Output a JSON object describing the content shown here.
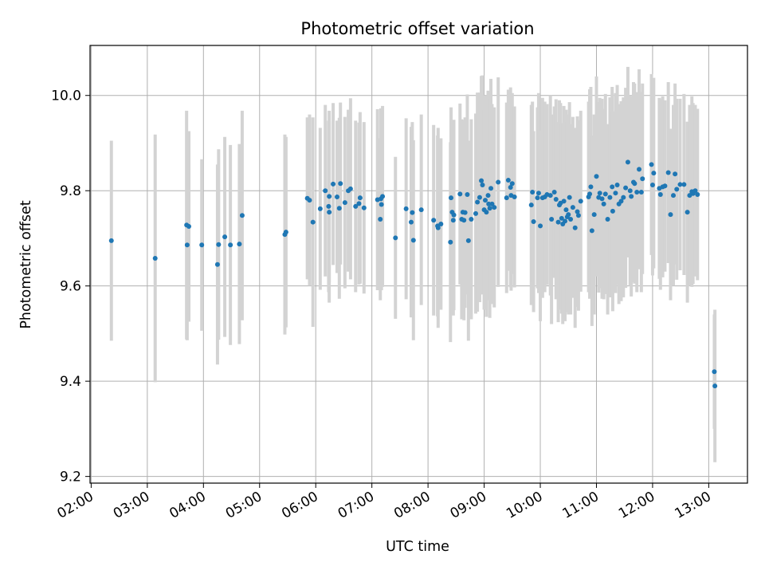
{
  "chart_data": {
    "type": "scatter",
    "title": "Photometric offset variation",
    "xlabel": "UTC time",
    "ylabel": "Photometric offset",
    "x_unit": "hours UTC",
    "xlim": [
      1.98,
      13.69
    ],
    "ylim": [
      9.186,
      10.105
    ],
    "grid": true,
    "x_tick_values": [
      2,
      3,
      4,
      5,
      6,
      7,
      8,
      9,
      10,
      11,
      12,
      13
    ],
    "x_tick_labels": [
      "02:00",
      "03:00",
      "04:00",
      "05:00",
      "06:00",
      "07:00",
      "08:00",
      "09:00",
      "10:00",
      "11:00",
      "12:00",
      "13:00"
    ],
    "y_tick_values": [
      9.2,
      9.4,
      9.6,
      9.8,
      10.0
    ],
    "y_tick_labels": [
      "9.2",
      "9.4",
      "9.6",
      "9.8",
      "10.0"
    ],
    "colors": {
      "point": "#1f77b4",
      "errorbar": "#d3d3d3",
      "grid": "#b0b0b0"
    },
    "series": [
      {
        "name": "offset",
        "points": [
          [
            2.36,
            9.695,
            0.21
          ],
          [
            3.14,
            9.658,
            0.26
          ],
          [
            3.7,
            9.728,
            0.24
          ],
          [
            3.71,
            9.686,
            0.2
          ],
          [
            3.74,
            9.725,
            0.2
          ],
          [
            3.97,
            9.686,
            0.18
          ],
          [
            4.25,
            9.645,
            0.21
          ],
          [
            4.27,
            9.687,
            0.2
          ],
          [
            4.38,
            9.703,
            0.21
          ],
          [
            4.48,
            9.686,
            0.21
          ],
          [
            4.64,
            9.688,
            0.21
          ],
          [
            4.69,
            9.748,
            0.22
          ],
          [
            5.45,
            9.708,
            0.21
          ],
          [
            5.47,
            9.713,
            0.2
          ],
          [
            5.85,
            9.784,
            0.17
          ],
          [
            5.89,
            9.78,
            0.18
          ],
          [
            5.95,
            9.734,
            0.22
          ],
          [
            6.08,
            9.762,
            0.17
          ],
          [
            6.17,
            9.8,
            0.18
          ],
          [
            6.23,
            9.767,
            0.18
          ],
          [
            6.24,
            9.788,
            0.18
          ],
          [
            6.24,
            9.755,
            0.19
          ],
          [
            6.31,
            9.814,
            0.17
          ],
          [
            6.38,
            9.787,
            0.16
          ],
          [
            6.42,
            9.763,
            0.19
          ],
          [
            6.44,
            9.815,
            0.17
          ],
          [
            6.52,
            9.775,
            0.18
          ],
          [
            6.58,
            9.8,
            0.17
          ],
          [
            6.62,
            9.804,
            0.19
          ],
          [
            6.71,
            9.767,
            0.18
          ],
          [
            6.77,
            9.773,
            0.17
          ],
          [
            6.79,
            9.785,
            0.18
          ],
          [
            6.86,
            9.764,
            0.18
          ],
          [
            7.1,
            9.781,
            0.19
          ],
          [
            7.15,
            9.74,
            0.17
          ],
          [
            7.16,
            9.783,
            0.19
          ],
          [
            7.17,
            9.771,
            0.18
          ],
          [
            7.19,
            9.788,
            0.19
          ],
          [
            7.42,
            9.701,
            0.17
          ],
          [
            7.61,
            9.762,
            0.19
          ],
          [
            7.7,
            9.734,
            0.2
          ],
          [
            7.72,
            9.754,
            0.19
          ],
          [
            7.74,
            9.696,
            0.21
          ],
          [
            7.88,
            9.76,
            0.2
          ],
          [
            8.1,
            9.738,
            0.2
          ],
          [
            8.17,
            9.726,
            0.19
          ],
          [
            8.18,
            9.722,
            0.21
          ],
          [
            8.23,
            9.73,
            0.18
          ],
          [
            8.4,
            9.692,
            0.21
          ],
          [
            8.41,
            9.785,
            0.19
          ],
          [
            8.43,
            9.755,
            0.19
          ],
          [
            8.45,
            9.738,
            0.2
          ],
          [
            8.46,
            9.749,
            0.2
          ],
          [
            8.57,
            9.793,
            0.19
          ],
          [
            8.6,
            9.74,
            0.21
          ],
          [
            8.62,
            9.755,
            0.19
          ],
          [
            8.64,
            9.738,
            0.21
          ],
          [
            8.66,
            9.754,
            0.2
          ],
          [
            8.7,
            9.792,
            0.21
          ],
          [
            8.72,
            9.695,
            0.21
          ],
          [
            8.77,
            9.74,
            0.21
          ],
          [
            8.85,
            9.752,
            0.21
          ],
          [
            8.88,
            9.776,
            0.23
          ],
          [
            8.92,
            9.786,
            0.22
          ],
          [
            8.95,
            9.821,
            0.22
          ],
          [
            8.97,
            9.812,
            0.23
          ],
          [
            9.0,
            9.76,
            0.21
          ],
          [
            9.02,
            9.78,
            0.22
          ],
          [
            9.04,
            9.755,
            0.22
          ],
          [
            9.07,
            9.79,
            0.22
          ],
          [
            9.08,
            9.772,
            0.2
          ],
          [
            9.1,
            9.763,
            0.23
          ],
          [
            9.12,
            9.805,
            0.23
          ],
          [
            9.14,
            9.772,
            0.21
          ],
          [
            9.18,
            9.765,
            0.21
          ],
          [
            9.25,
            9.818,
            0.22
          ],
          [
            9.4,
            9.785,
            0.2
          ],
          [
            9.43,
            9.822,
            0.19
          ],
          [
            9.47,
            9.807,
            0.21
          ],
          [
            9.48,
            9.79,
            0.2
          ],
          [
            9.5,
            9.815,
            0.19
          ],
          [
            9.54,
            9.787,
            0.19
          ],
          [
            9.84,
            9.77,
            0.21
          ],
          [
            9.86,
            9.797,
            0.19
          ],
          [
            9.88,
            9.735,
            0.19
          ],
          [
            9.95,
            9.785,
            0.19
          ],
          [
            9.97,
            9.795,
            0.21
          ],
          [
            10.0,
            9.726,
            0.2
          ],
          [
            10.04,
            9.785,
            0.21
          ],
          [
            10.08,
            9.787,
            0.2
          ],
          [
            10.12,
            9.792,
            0.19
          ],
          [
            10.18,
            9.79,
            0.21
          ],
          [
            10.2,
            9.74,
            0.22
          ],
          [
            10.25,
            9.797,
            0.18
          ],
          [
            10.28,
            9.782,
            0.21
          ],
          [
            10.32,
            9.734,
            0.21
          ],
          [
            10.34,
            9.77,
            0.22
          ],
          [
            10.36,
            9.774,
            0.21
          ],
          [
            10.38,
            9.742,
            0.2
          ],
          [
            10.4,
            9.73,
            0.21
          ],
          [
            10.42,
            9.778,
            0.2
          ],
          [
            10.44,
            9.736,
            0.21
          ],
          [
            10.46,
            9.76,
            0.21
          ],
          [
            10.48,
            9.745,
            0.2
          ],
          [
            10.5,
            9.75,
            0.21
          ],
          [
            10.52,
            9.786,
            0.2
          ],
          [
            10.54,
            9.74,
            0.2
          ],
          [
            10.58,
            9.765,
            0.19
          ],
          [
            10.62,
            9.722,
            0.21
          ],
          [
            10.66,
            9.756,
            0.2
          ],
          [
            10.68,
            9.748,
            0.2
          ],
          [
            10.72,
            9.778,
            0.19
          ],
          [
            10.86,
            9.787,
            0.2
          ],
          [
            10.88,
            9.793,
            0.22
          ],
          [
            10.9,
            9.808,
            0.21
          ],
          [
            10.92,
            9.716,
            0.2
          ],
          [
            10.96,
            9.75,
            0.21
          ],
          [
            11.0,
            9.83,
            0.21
          ],
          [
            11.04,
            9.786,
            0.2
          ],
          [
            11.06,
            9.795,
            0.2
          ],
          [
            11.1,
            9.783,
            0.21
          ],
          [
            11.13,
            9.772,
            0.2
          ],
          [
            11.16,
            9.793,
            0.21
          ],
          [
            11.2,
            9.74,
            0.2
          ],
          [
            11.24,
            9.786,
            0.21
          ],
          [
            11.28,
            9.808,
            0.21
          ],
          [
            11.29,
            9.757,
            0.21
          ],
          [
            11.34,
            9.795,
            0.21
          ],
          [
            11.37,
            9.812,
            0.21
          ],
          [
            11.4,
            9.772,
            0.21
          ],
          [
            11.44,
            9.778,
            0.21
          ],
          [
            11.48,
            9.786,
            0.21
          ],
          [
            11.52,
            9.806,
            0.21
          ],
          [
            11.56,
            9.86,
            0.2
          ],
          [
            11.6,
            9.8,
            0.2
          ],
          [
            11.62,
            9.788,
            0.21
          ],
          [
            11.66,
            9.818,
            0.21
          ],
          [
            11.68,
            9.815,
            0.21
          ],
          [
            11.72,
            9.797,
            0.21
          ],
          [
            11.76,
            9.845,
            0.21
          ],
          [
            11.8,
            9.797,
            0.21
          ],
          [
            11.82,
            9.825,
            0.2
          ],
          [
            11.98,
            9.855,
            0.19
          ],
          [
            12.0,
            9.812,
            0.19
          ],
          [
            12.02,
            9.837,
            0.2
          ],
          [
            12.12,
            9.805,
            0.19
          ],
          [
            12.14,
            9.792,
            0.2
          ],
          [
            12.18,
            9.808,
            0.19
          ],
          [
            12.22,
            9.81,
            0.18
          ],
          [
            12.28,
            9.838,
            0.19
          ],
          [
            12.32,
            9.75,
            0.18
          ],
          [
            12.37,
            9.79,
            0.19
          ],
          [
            12.4,
            9.835,
            0.19
          ],
          [
            12.43,
            9.803,
            0.19
          ],
          [
            12.49,
            9.813,
            0.18
          ],
          [
            12.56,
            9.813,
            0.19
          ],
          [
            12.62,
            9.755,
            0.19
          ],
          [
            12.66,
            9.79,
            0.19
          ],
          [
            12.7,
            9.798,
            0.2
          ],
          [
            12.72,
            9.794,
            0.19
          ],
          [
            12.76,
            9.8,
            0.18
          ],
          [
            12.8,
            9.792,
            0.18
          ],
          [
            13.1,
            9.42,
            0.12
          ],
          [
            13.11,
            9.39,
            0.16
          ]
        ]
      }
    ]
  }
}
